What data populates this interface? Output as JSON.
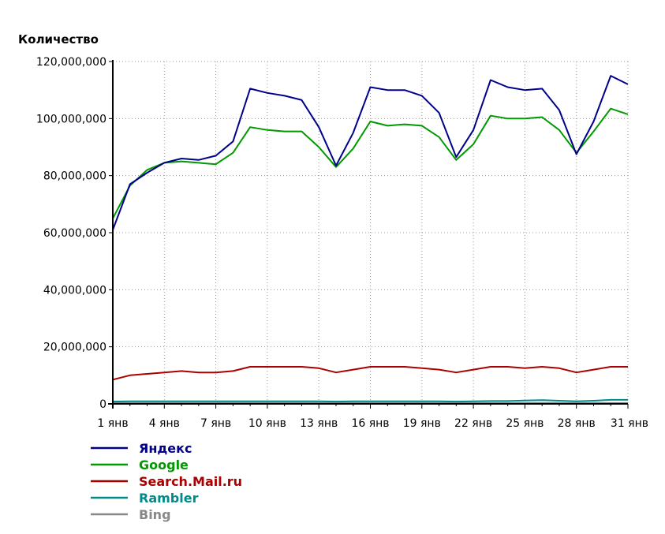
{
  "chart_data": {
    "type": "line",
    "ylabel": "Количество",
    "xlabel": "",
    "ylim": [
      0,
      120000000
    ],
    "yticks": [
      "0",
      "20,000,000",
      "40,000,000",
      "60,000,000",
      "80,000,000",
      "100,000,000",
      "120,000,000"
    ],
    "ytick_values": [
      0,
      20000000,
      40000000,
      60000000,
      80000000,
      100000000,
      120000000
    ],
    "xlim": [
      1,
      31
    ],
    "x": [
      1,
      2,
      3,
      4,
      5,
      6,
      7,
      8,
      9,
      10,
      11,
      12,
      13,
      14,
      15,
      16,
      17,
      18,
      19,
      20,
      21,
      22,
      23,
      24,
      25,
      26,
      27,
      28,
      29,
      30,
      31
    ],
    "xticks": [
      "1 янв",
      "4 янв",
      "7 янв",
      "10 янв",
      "13 янв",
      "16 янв",
      "19 янв",
      "22 янв",
      "25 янв",
      "28 янв",
      "31 янв"
    ],
    "xtick_values": [
      1,
      4,
      7,
      10,
      13,
      16,
      19,
      22,
      25,
      28,
      31
    ],
    "grid": true,
    "legend_position": "bottom-left",
    "series": [
      {
        "name": "Яндекс",
        "color": "#00008b",
        "values": [
          61000000,
          77000000,
          81000000,
          84500000,
          86000000,
          85500000,
          87000000,
          92000000,
          110500000,
          109000000,
          108000000,
          106500000,
          97000000,
          83500000,
          95000000,
          111000000,
          110000000,
          110000000,
          108000000,
          102000000,
          86500000,
          96000000,
          113500000,
          111000000,
          110000000,
          110500000,
          103000000,
          87500000,
          99000000,
          115000000,
          112000000
        ]
      },
      {
        "name": "Google",
        "color": "#009900",
        "values": [
          65000000,
          76500000,
          82000000,
          84500000,
          85000000,
          84500000,
          84000000,
          88000000,
          97000000,
          96000000,
          95500000,
          95500000,
          90000000,
          83000000,
          89500000,
          99000000,
          97500000,
          98000000,
          97500000,
          93500000,
          85500000,
          91000000,
          101000000,
          100000000,
          100000000,
          100500000,
          96000000,
          88000000,
          95500000,
          103500000,
          101500000
        ]
      },
      {
        "name": "Search.Mail.ru",
        "color": "#aa0000",
        "values": [
          8500000,
          10000000,
          10500000,
          11000000,
          11500000,
          11000000,
          11000000,
          11500000,
          13000000,
          13000000,
          13000000,
          13000000,
          12500000,
          11000000,
          12000000,
          13000000,
          13000000,
          13000000,
          12500000,
          12000000,
          11000000,
          12000000,
          13000000,
          13000000,
          12500000,
          13000000,
          12500000,
          11000000,
          12000000,
          13000000,
          13000000
        ]
      },
      {
        "name": "Rambler",
        "color": "#008b8b",
        "values": [
          800000,
          900000,
          900000,
          900000,
          900000,
          900000,
          900000,
          900000,
          900000,
          900000,
          900000,
          900000,
          900000,
          800000,
          900000,
          900000,
          900000,
          900000,
          900000,
          900000,
          800000,
          900000,
          1000000,
          1000000,
          1200000,
          1300000,
          1100000,
          900000,
          1100000,
          1400000,
          1400000
        ]
      },
      {
        "name": "Bing",
        "color": "#888888",
        "values": [
          300000,
          300000,
          300000,
          300000,
          300000,
          300000,
          300000,
          300000,
          300000,
          300000,
          300000,
          300000,
          300000,
          300000,
          300000,
          300000,
          300000,
          300000,
          300000,
          300000,
          300000,
          300000,
          300000,
          300000,
          300000,
          300000,
          300000,
          300000,
          300000,
          300000,
          300000
        ]
      }
    ]
  }
}
